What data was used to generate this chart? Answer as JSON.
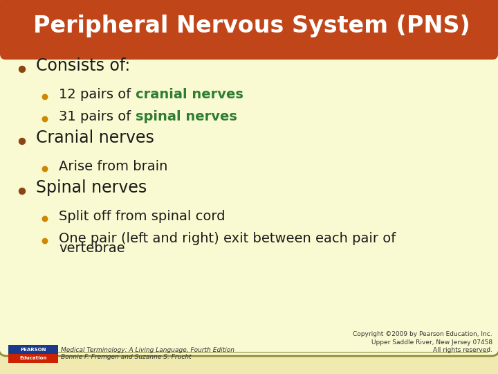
{
  "title": "Peripheral Nervous System (PNS)",
  "title_color": "#FFFFFF",
  "title_bg_color": "#C0461A",
  "bg_color": "#F0EAB0",
  "card_bg_color": "#FAFAD2",
  "card_border_color": "#8B8B3A",
  "bullet1_color": "#8B4513",
  "bullet2_color": "#CC8800",
  "green_color": "#2E7D32",
  "black_color": "#1A1A1A",
  "footer_left_line1": "Medical Terminology: A Living Language, Fourth Edition",
  "footer_left_line2": "Bonnie F. Fremgen and Suzanne S. Frucht",
  "footer_right_line1": "Copyright ©2009 by Pearson Education, Inc.",
  "footer_right_line2": "Upper Saddle River, New Jersey 07458",
  "footer_right_line3": "All rights reserved.",
  "content": [
    {
      "level": 1,
      "text_parts": [
        {
          "text": "Consists of:",
          "color": "#1A1A1A",
          "bold": false
        }
      ]
    },
    {
      "level": 2,
      "text_parts": [
        {
          "text": "12 pairs of ",
          "color": "#1A1A1A",
          "bold": false
        },
        {
          "text": "cranial nerves",
          "color": "#2E7D32",
          "bold": true
        }
      ]
    },
    {
      "level": 2,
      "text_parts": [
        {
          "text": "31 pairs of ",
          "color": "#1A1A1A",
          "bold": false
        },
        {
          "text": "spinal nerves",
          "color": "#2E7D32",
          "bold": true
        }
      ]
    },
    {
      "level": 1,
      "text_parts": [
        {
          "text": "Cranial nerves",
          "color": "#1A1A1A",
          "bold": false
        }
      ]
    },
    {
      "level": 2,
      "text_parts": [
        {
          "text": "Arise from brain",
          "color": "#1A1A1A",
          "bold": false
        }
      ]
    },
    {
      "level": 1,
      "text_parts": [
        {
          "text": "Spinal nerves",
          "color": "#1A1A1A",
          "bold": false
        }
      ]
    },
    {
      "level": 2,
      "text_parts": [
        {
          "text": "Split off from spinal cord",
          "color": "#1A1A1A",
          "bold": false
        }
      ]
    },
    {
      "level": 2,
      "text_parts": [
        {
          "text": "One pair (left and right) exit between each pair of",
          "color": "#1A1A1A",
          "bold": false
        }
      ],
      "continuation": "vertebrae"
    }
  ],
  "title_fontsize": 24,
  "l1_fontsize": 17,
  "l2_fontsize": 14
}
